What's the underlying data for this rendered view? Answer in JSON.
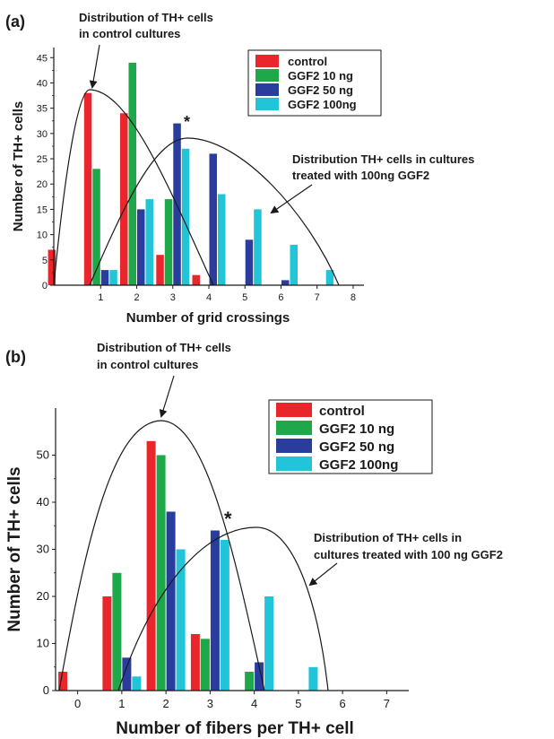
{
  "colors": {
    "control": "#e8262b",
    "GGF2 10 ng": "#1fa84a",
    "GGF2 50 ng": "#2a3d9c",
    "GGF2 100ng": "#22c4d8"
  },
  "chart_data": [
    {
      "type": "bar",
      "panel_label": "(a)",
      "xlabel": "Number of grid crossings",
      "ylabel": "Number of TH+ cells",
      "xlim": [
        -0.3,
        8.3
      ],
      "ylim": [
        0,
        47
      ],
      "x_ticks": [
        1,
        2,
        3,
        4,
        5,
        6,
        7,
        8
      ],
      "y_ticks": [
        0,
        5,
        10,
        15,
        20,
        25,
        30,
        35,
        40,
        45
      ],
      "legend": [
        "control",
        "GGF2 10 ng",
        "GGF2 50 ng",
        "GGF2 100ng"
      ],
      "series": [
        {
          "name": "control",
          "x": [
            0,
            1,
            2,
            3,
            4
          ],
          "values": [
            7,
            38,
            34,
            6,
            2
          ]
        },
        {
          "name": "GGF2 10 ng",
          "x": [
            1,
            2,
            3
          ],
          "values": [
            23,
            44,
            17
          ]
        },
        {
          "name": "GGF2 50 ng",
          "x": [
            1,
            2,
            3,
            4,
            5,
            6
          ],
          "values": [
            3,
            15,
            32,
            26,
            9,
            1
          ]
        },
        {
          "name": "GGF2 100ng",
          "x": [
            1,
            2,
            3,
            4,
            5,
            6,
            7
          ],
          "values": [
            3,
            17,
            27,
            18,
            15,
            8,
            3
          ]
        }
      ],
      "annotations": [
        "Distribution of TH+ cells in control cultures",
        "Distribution TH+ cells in cultures treated with 100ng GGF2",
        "*"
      ]
    },
    {
      "type": "bar",
      "panel_label": "(b)",
      "xlabel": "Number of fibers per TH+ cell",
      "ylabel": "Number of TH+ cells",
      "xlim": [
        -0.5,
        7.5
      ],
      "ylim": [
        0,
        60
      ],
      "x_ticks": [
        0,
        1,
        2,
        3,
        4,
        5,
        6,
        7
      ],
      "y_ticks": [
        0,
        10,
        20,
        30,
        40,
        50
      ],
      "legend": [
        "control",
        "GGF2 10 ng",
        "GGF2 50 ng",
        "GGF2 100ng"
      ],
      "series": [
        {
          "name": "control",
          "x": [
            0,
            1,
            2,
            3
          ],
          "values": [
            4,
            20,
            53,
            12
          ]
        },
        {
          "name": "GGF2 10 ng",
          "x": [
            1,
            2,
            3,
            4
          ],
          "values": [
            25,
            50,
            11,
            4
          ]
        },
        {
          "name": "GGF2 50 ng",
          "x": [
            1,
            2,
            3,
            4
          ],
          "values": [
            7,
            38,
            34,
            6
          ]
        },
        {
          "name": "GGF2 100ng",
          "x": [
            1,
            2,
            3,
            4,
            5
          ],
          "values": [
            3,
            30,
            32,
            20,
            5
          ]
        }
      ],
      "annotations": [
        "Distribution of TH+ cells in control cultures",
        "Distribution of TH+ cells in cultures treated with 100 ng GGF2",
        "*"
      ]
    }
  ]
}
